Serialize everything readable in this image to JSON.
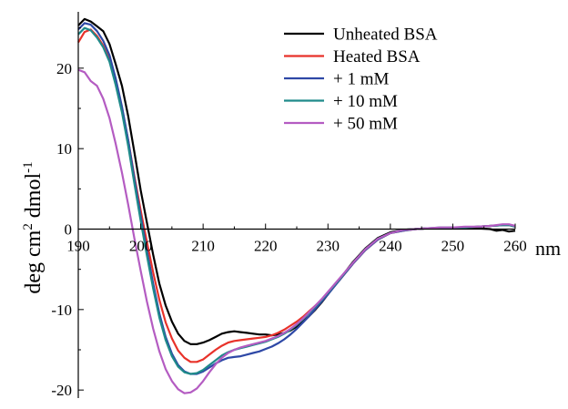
{
  "chart_data": {
    "type": "line",
    "xlabel_unit": "nm",
    "ylabel": {
      "main": "deg cm",
      "sup1": "2",
      "mid": " dmol",
      "sup2": "-1"
    },
    "xlim": [
      190,
      260
    ],
    "ylim": [
      -21,
      27
    ],
    "xticks": [
      190,
      200,
      210,
      220,
      230,
      240,
      250,
      260
    ],
    "xtick_labels": [
      "190",
      "200",
      "210",
      "220",
      "230",
      "240",
      "250",
      "260"
    ],
    "yticks": [
      20,
      10,
      0,
      -10,
      -20
    ],
    "ytick_labels": [
      "20",
      "10",
      "0",
      "-10",
      "-20"
    ],
    "legend_position": "top-right",
    "grid": false,
    "series": [
      {
        "name": "Unheated BSA",
        "color": "#000000",
        "points": [
          [
            190,
            25.3
          ],
          [
            191,
            26.1
          ],
          [
            192,
            25.8
          ],
          [
            193,
            25.2
          ],
          [
            194,
            24.6
          ],
          [
            195,
            23.0
          ],
          [
            196,
            20.5
          ],
          [
            197,
            17.8
          ],
          [
            198,
            14.0
          ],
          [
            199,
            9.5
          ],
          [
            200,
            4.8
          ],
          [
            201,
            0.8
          ],
          [
            202,
            -3.2
          ],
          [
            203,
            -6.8
          ],
          [
            204,
            -9.5
          ],
          [
            205,
            -11.5
          ],
          [
            206,
            -13.0
          ],
          [
            207,
            -13.9
          ],
          [
            208,
            -14.3
          ],
          [
            209,
            -14.3
          ],
          [
            210,
            -14.1
          ],
          [
            211,
            -13.8
          ],
          [
            212,
            -13.4
          ],
          [
            213,
            -13.0
          ],
          [
            214,
            -12.8
          ],
          [
            215,
            -12.7
          ],
          [
            216,
            -12.8
          ],
          [
            217,
            -12.9
          ],
          [
            218,
            -13.0
          ],
          [
            219,
            -13.1
          ],
          [
            220,
            -13.1
          ],
          [
            221,
            -13.2
          ],
          [
            222,
            -13.1
          ],
          [
            223,
            -12.9
          ],
          [
            224,
            -12.6
          ],
          [
            225,
            -12.1
          ],
          [
            226,
            -11.5
          ],
          [
            227,
            -10.8
          ],
          [
            228,
            -10.0
          ],
          [
            229,
            -9.1
          ],
          [
            230,
            -8.1
          ],
          [
            232,
            -6.1
          ],
          [
            234,
            -4.1
          ],
          [
            236,
            -2.4
          ],
          [
            238,
            -1.1
          ],
          [
            240,
            -0.4
          ],
          [
            242,
            -0.1
          ],
          [
            244,
            0.0
          ],
          [
            246,
            0.1
          ],
          [
            248,
            0.1
          ],
          [
            250,
            0.1
          ],
          [
            252,
            0.1
          ],
          [
            254,
            0.1
          ],
          [
            256,
            0.0
          ],
          [
            257,
            -0.2
          ],
          [
            258,
            -0.1
          ],
          [
            259,
            -0.3
          ],
          [
            260,
            -0.2
          ]
        ]
      },
      {
        "name": "Heated BSA",
        "color": "#e8322a",
        "points": [
          [
            190,
            23.2
          ],
          [
            191,
            24.5
          ],
          [
            192,
            24.8
          ],
          [
            193,
            24.0
          ],
          [
            194,
            22.8
          ],
          [
            195,
            21.0
          ],
          [
            196,
            18.2
          ],
          [
            197,
            15.0
          ],
          [
            198,
            11.0
          ],
          [
            199,
            6.5
          ],
          [
            200,
            2.3
          ],
          [
            201,
            -1.6
          ],
          [
            202,
            -5.4
          ],
          [
            203,
            -8.8
          ],
          [
            204,
            -11.6
          ],
          [
            205,
            -13.6
          ],
          [
            206,
            -15.1
          ],
          [
            207,
            -16.0
          ],
          [
            208,
            -16.5
          ],
          [
            209,
            -16.5
          ],
          [
            210,
            -16.2
          ],
          [
            211,
            -15.6
          ],
          [
            212,
            -15.0
          ],
          [
            213,
            -14.5
          ],
          [
            214,
            -14.1
          ],
          [
            215,
            -13.9
          ],
          [
            216,
            -13.8
          ],
          [
            217,
            -13.7
          ],
          [
            218,
            -13.6
          ],
          [
            219,
            -13.5
          ],
          [
            220,
            -13.4
          ],
          [
            221,
            -13.2
          ],
          [
            222,
            -12.9
          ],
          [
            223,
            -12.5
          ],
          [
            224,
            -12.0
          ],
          [
            225,
            -11.5
          ],
          [
            226,
            -10.9
          ],
          [
            227,
            -10.2
          ],
          [
            228,
            -9.5
          ],
          [
            229,
            -8.8
          ],
          [
            230,
            -8.0
          ],
          [
            232,
            -6.2
          ],
          [
            234,
            -4.3
          ],
          [
            236,
            -2.6
          ],
          [
            238,
            -1.3
          ],
          [
            240,
            -0.5
          ],
          [
            242,
            -0.2
          ],
          [
            244,
            0.0
          ],
          [
            246,
            0.1
          ],
          [
            248,
            0.1
          ],
          [
            250,
            0.2
          ],
          [
            252,
            0.2
          ],
          [
            254,
            0.3
          ],
          [
            256,
            0.4
          ],
          [
            258,
            0.5
          ],
          [
            259,
            0.5
          ],
          [
            260,
            0.3
          ]
        ]
      },
      {
        "name": "+ 1 mM",
        "color": "#2e48a6",
        "points": [
          [
            190,
            24.8
          ],
          [
            191,
            25.6
          ],
          [
            192,
            25.4
          ],
          [
            193,
            24.6
          ],
          [
            194,
            23.4
          ],
          [
            195,
            21.6
          ],
          [
            196,
            18.7
          ],
          [
            197,
            15.2
          ],
          [
            198,
            11.0
          ],
          [
            199,
            6.2
          ],
          [
            200,
            1.6
          ],
          [
            201,
            -2.7
          ],
          [
            202,
            -6.8
          ],
          [
            203,
            -10.5
          ],
          [
            204,
            -13.4
          ],
          [
            205,
            -15.5
          ],
          [
            206,
            -16.9
          ],
          [
            207,
            -17.7
          ],
          [
            208,
            -18.0
          ],
          [
            209,
            -18.0
          ],
          [
            210,
            -17.7
          ],
          [
            211,
            -17.2
          ],
          [
            212,
            -16.7
          ],
          [
            213,
            -16.3
          ],
          [
            214,
            -16.0
          ],
          [
            215,
            -15.9
          ],
          [
            216,
            -15.8
          ],
          [
            217,
            -15.6
          ],
          [
            218,
            -15.4
          ],
          [
            219,
            -15.2
          ],
          [
            220,
            -14.9
          ],
          [
            221,
            -14.6
          ],
          [
            222,
            -14.2
          ],
          [
            223,
            -13.7
          ],
          [
            224,
            -13.1
          ],
          [
            225,
            -12.4
          ],
          [
            226,
            -11.6
          ],
          [
            227,
            -10.8
          ],
          [
            228,
            -9.9
          ],
          [
            229,
            -9.0
          ],
          [
            230,
            -8.1
          ],
          [
            232,
            -6.2
          ],
          [
            234,
            -4.3
          ],
          [
            236,
            -2.6
          ],
          [
            238,
            -1.3
          ],
          [
            240,
            -0.5
          ],
          [
            242,
            -0.2
          ],
          [
            244,
            0.0
          ],
          [
            246,
            0.1
          ],
          [
            248,
            0.1
          ],
          [
            250,
            0.2
          ],
          [
            252,
            0.2
          ],
          [
            254,
            0.3
          ],
          [
            256,
            0.4
          ],
          [
            258,
            0.5
          ],
          [
            259,
            0.5
          ],
          [
            260,
            0.3
          ]
        ]
      },
      {
        "name": "+ 10 mM",
        "color": "#1f8a8a",
        "points": [
          [
            190,
            24.2
          ],
          [
            191,
            25.0
          ],
          [
            192,
            24.7
          ],
          [
            193,
            23.8
          ],
          [
            194,
            22.6
          ],
          [
            195,
            20.8
          ],
          [
            196,
            17.9
          ],
          [
            197,
            14.5
          ],
          [
            198,
            10.3
          ],
          [
            199,
            5.6
          ],
          [
            200,
            1.0
          ],
          [
            201,
            -3.3
          ],
          [
            202,
            -7.4
          ],
          [
            203,
            -11.0
          ],
          [
            204,
            -13.8
          ],
          [
            205,
            -15.8
          ],
          [
            206,
            -17.1
          ],
          [
            207,
            -17.8
          ],
          [
            208,
            -18.0
          ],
          [
            209,
            -17.9
          ],
          [
            210,
            -17.5
          ],
          [
            211,
            -16.9
          ],
          [
            212,
            -16.3
          ],
          [
            213,
            -15.7
          ],
          [
            214,
            -15.3
          ],
          [
            215,
            -15.0
          ],
          [
            216,
            -14.8
          ],
          [
            217,
            -14.6
          ],
          [
            218,
            -14.4
          ],
          [
            219,
            -14.2
          ],
          [
            220,
            -14.0
          ],
          [
            221,
            -13.7
          ],
          [
            222,
            -13.4
          ],
          [
            223,
            -13.0
          ],
          [
            224,
            -12.5
          ],
          [
            225,
            -11.9
          ],
          [
            226,
            -11.2
          ],
          [
            227,
            -10.4
          ],
          [
            228,
            -9.6
          ],
          [
            229,
            -8.8
          ],
          [
            230,
            -7.9
          ],
          [
            232,
            -6.1
          ],
          [
            234,
            -4.2
          ],
          [
            236,
            -2.5
          ],
          [
            238,
            -1.2
          ],
          [
            240,
            -0.5
          ],
          [
            242,
            -0.1
          ],
          [
            244,
            0.0
          ],
          [
            246,
            0.1
          ],
          [
            248,
            0.2
          ],
          [
            250,
            0.2
          ],
          [
            252,
            0.2
          ],
          [
            254,
            0.3
          ],
          [
            256,
            0.4
          ],
          [
            258,
            0.5
          ],
          [
            259,
            0.5
          ],
          [
            260,
            0.3
          ]
        ]
      },
      {
        "name": "+ 50 mM",
        "color": "#b45cc2",
        "points": [
          [
            190,
            19.8
          ],
          [
            191,
            19.5
          ],
          [
            192,
            18.4
          ],
          [
            193,
            17.8
          ],
          [
            194,
            16.2
          ],
          [
            195,
            13.8
          ],
          [
            196,
            10.6
          ],
          [
            197,
            7.0
          ],
          [
            198,
            3.0
          ],
          [
            199,
            -1.2
          ],
          [
            200,
            -5.2
          ],
          [
            201,
            -9.0
          ],
          [
            202,
            -12.4
          ],
          [
            203,
            -15.2
          ],
          [
            204,
            -17.4
          ],
          [
            205,
            -18.9
          ],
          [
            206,
            -19.9
          ],
          [
            207,
            -20.4
          ],
          [
            208,
            -20.3
          ],
          [
            209,
            -19.8
          ],
          [
            210,
            -18.9
          ],
          [
            211,
            -17.8
          ],
          [
            212,
            -16.8
          ],
          [
            213,
            -16.0
          ],
          [
            214,
            -15.4
          ],
          [
            215,
            -15.0
          ],
          [
            216,
            -14.7
          ],
          [
            217,
            -14.5
          ],
          [
            218,
            -14.3
          ],
          [
            219,
            -14.1
          ],
          [
            220,
            -13.9
          ],
          [
            221,
            -13.6
          ],
          [
            222,
            -13.3
          ],
          [
            223,
            -12.9
          ],
          [
            224,
            -12.4
          ],
          [
            225,
            -11.8
          ],
          [
            226,
            -11.1
          ],
          [
            227,
            -10.3
          ],
          [
            228,
            -9.5
          ],
          [
            229,
            -8.7
          ],
          [
            230,
            -7.8
          ],
          [
            232,
            -6.0
          ],
          [
            234,
            -4.2
          ],
          [
            236,
            -2.5
          ],
          [
            238,
            -1.2
          ],
          [
            240,
            -0.5
          ],
          [
            242,
            -0.1
          ],
          [
            244,
            0.0
          ],
          [
            246,
            0.1
          ],
          [
            248,
            0.2
          ],
          [
            250,
            0.2
          ],
          [
            252,
            0.3
          ],
          [
            254,
            0.3
          ],
          [
            256,
            0.4
          ],
          [
            258,
            0.6
          ],
          [
            259,
            0.6
          ],
          [
            260,
            0.4
          ]
        ]
      }
    ]
  }
}
